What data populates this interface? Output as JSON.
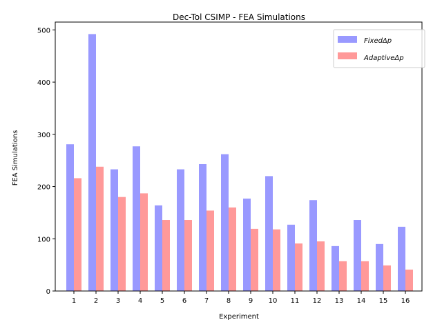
{
  "chart_data": {
    "type": "bar",
    "title": "Dec-Tol CSIMP - FEA Simulations",
    "xlabel": "Experiment",
    "ylabel": "FEA Simulations",
    "categories": [
      "1",
      "2",
      "3",
      "4",
      "5",
      "6",
      "7",
      "8",
      "9",
      "10",
      "11",
      "12",
      "13",
      "14",
      "15",
      "16"
    ],
    "series": [
      {
        "name": "FixedΔp",
        "color": "#9999ff",
        "values": [
          281,
          492,
          233,
          277,
          164,
          233,
          243,
          262,
          177,
          220,
          127,
          174,
          86,
          136,
          90,
          123
        ]
      },
      {
        "name": "AdaptiveΔp",
        "color": "#ff9999",
        "values": [
          216,
          238,
          180,
          187,
          136,
          136,
          154,
          160,
          119,
          118,
          91,
          95,
          57,
          57,
          49,
          41
        ]
      }
    ],
    "ylim": [
      0,
      515
    ],
    "yticks": [
      0,
      100,
      200,
      300,
      400,
      500
    ],
    "grid": false,
    "legend_position": "top-right"
  }
}
